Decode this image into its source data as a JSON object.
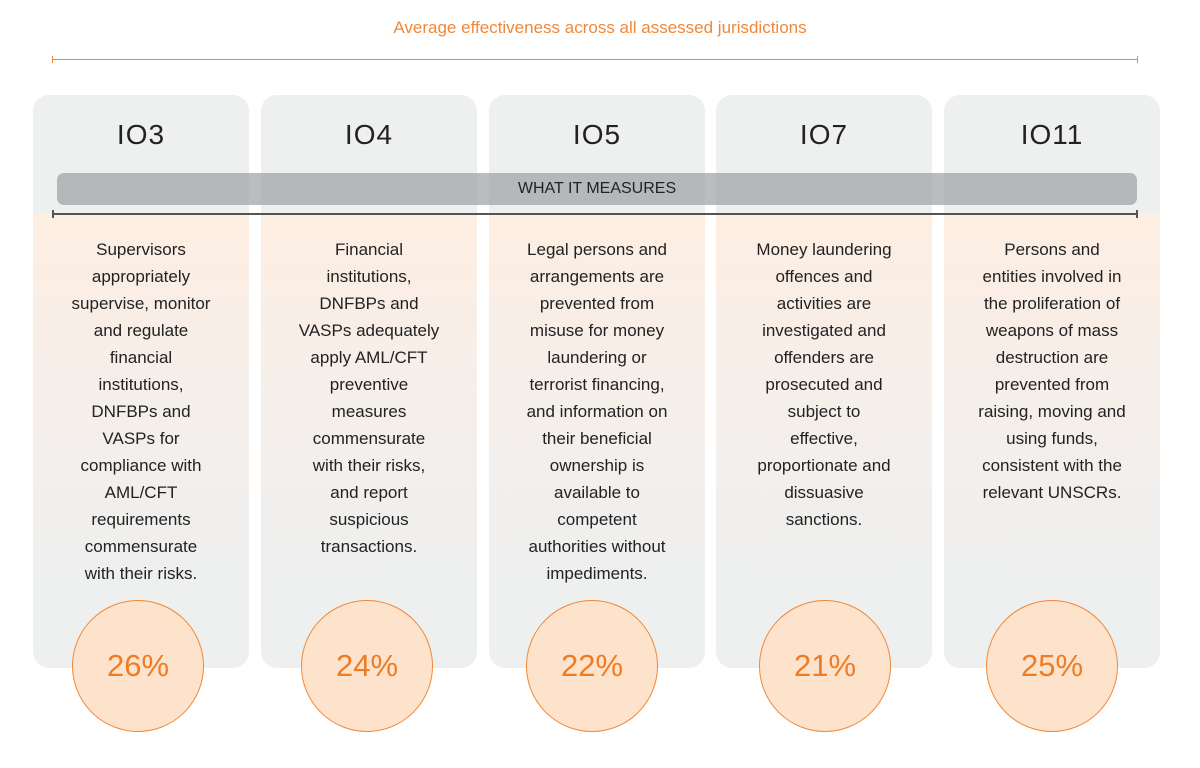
{
  "title": "Average effectiveness across all assessed jurisdictions",
  "bar_label": "WHAT IT MEASURES",
  "accent_color": "#f0883a",
  "outcomes": [
    {
      "code": "IO3",
      "description": "Supervisors\nappropriately\nsupervise, monitor\nand regulate\nfinancial\ninstitutions,\nDNFBPs and\nVASPs for\ncompliance with\nAML/CFT\nrequirements\ncommensurate\nwith their risks.",
      "value": "26%"
    },
    {
      "code": "IO4",
      "description": "Financial\ninstitutions,\nDNFBPs and\nVASPs adequately\napply AML/CFT\npreventive\nmeasures\ncommensurate\nwith their risks,\nand report\nsuspicious\ntransactions.",
      "value": "24%"
    },
    {
      "code": "IO5",
      "description": "Legal persons and\narrangements are\nprevented from\nmisuse for money\nlaundering or\nterrorist financing,\nand information on\ntheir beneficial\nownership is\navailable to\ncompetent\nauthorities without\nimpediments.",
      "value": "22%"
    },
    {
      "code": "IO7",
      "description": "Money laundering\noffences and\nactivities are\ninvestigated and\noffenders are\nprosecuted and\nsubject to\neffective,\nproportionate and\ndissuasive\nsanctions.",
      "value": "21%"
    },
    {
      "code": "IO11",
      "description": "Persons and\nentities involved in\nthe proliferation of\nweapons of mass\ndestruction are\nprevented from\nraising, moving and\nusing funds,\nconsistent with the\nrelevant UNSCRs.",
      "value": "25%"
    }
  ]
}
